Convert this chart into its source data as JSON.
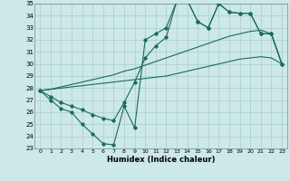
{
  "title": "",
  "xlabel": "Humidex (Indice chaleur)",
  "background_color": "#cce8e8",
  "grid_color": "#aacccc",
  "line_color": "#1a6b5a",
  "x": [
    0,
    1,
    2,
    3,
    4,
    5,
    6,
    7,
    8,
    9,
    10,
    11,
    12,
    13,
    14,
    15,
    16,
    17,
    18,
    19,
    20,
    21,
    22,
    23
  ],
  "y_main": [
    27.8,
    27.0,
    26.3,
    26.0,
    25.0,
    24.2,
    23.4,
    23.3,
    26.5,
    24.7,
    32.0,
    32.5,
    33.0,
    35.2,
    35.3,
    33.5,
    33.0,
    35.0,
    34.3,
    34.2,
    34.2,
    32.5,
    32.5,
    30.0
  ],
  "y_upper": [
    27.8,
    27.3,
    26.8,
    26.5,
    26.2,
    25.8,
    25.5,
    25.3,
    26.8,
    28.5,
    30.5,
    31.5,
    32.2,
    35.2,
    35.3,
    33.5,
    33.0,
    35.0,
    34.3,
    34.2,
    34.2,
    32.5,
    32.5,
    30.0
  ],
  "y_linear1": [
    27.8,
    27.9,
    28.1,
    28.3,
    28.5,
    28.7,
    28.9,
    29.1,
    29.4,
    29.6,
    29.9,
    30.2,
    30.5,
    30.8,
    31.1,
    31.4,
    31.7,
    32.0,
    32.3,
    32.5,
    32.7,
    32.8,
    32.5,
    30.0
  ],
  "y_linear2": [
    27.8,
    27.9,
    28.0,
    28.1,
    28.2,
    28.3,
    28.4,
    28.5,
    28.6,
    28.7,
    28.8,
    28.9,
    29.0,
    29.2,
    29.4,
    29.6,
    29.8,
    30.0,
    30.2,
    30.4,
    30.5,
    30.6,
    30.5,
    30.0
  ],
  "ylim": [
    23,
    35
  ],
  "xlim": [
    -0.5,
    23.5
  ],
  "yticks": [
    23,
    24,
    25,
    26,
    27,
    28,
    29,
    30,
    31,
    32,
    33,
    34,
    35
  ],
  "xticks": [
    0,
    1,
    2,
    3,
    4,
    5,
    6,
    7,
    8,
    9,
    10,
    11,
    12,
    13,
    14,
    15,
    16,
    17,
    18,
    19,
    20,
    21,
    22,
    23
  ]
}
